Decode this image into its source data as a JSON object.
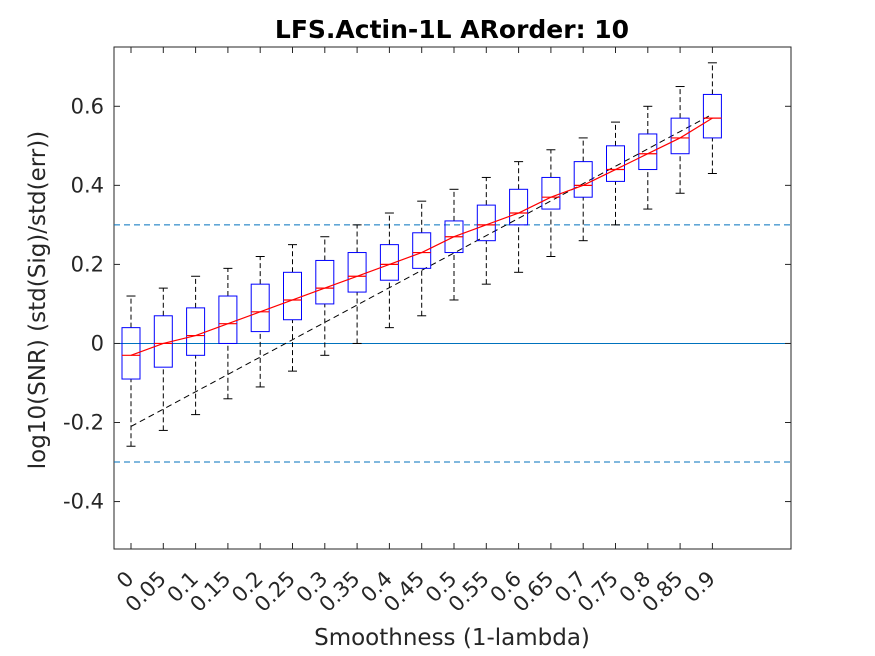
{
  "chart_data": {
    "type": "box",
    "title": "LFS.Actin-1L ARorder: 10",
    "xlabel": "Smoothness (1-lambda)",
    "ylabel": "log10(SNR) (std(Sig)/std(err))",
    "ylim": [
      -0.52,
      0.75
    ],
    "yticks": [
      -0.4,
      -0.2,
      0,
      0.2,
      0.4,
      0.6
    ],
    "ytick_labels": [
      "-0.4",
      "-0.2",
      "0",
      "0.2",
      "0.4",
      "0.6"
    ],
    "categories": [
      "0",
      "0.05",
      "0.1",
      "0.15",
      "0.2",
      "0.25",
      "0.3",
      "0.35",
      "0.4",
      "0.45",
      "0.5",
      "0.55",
      "0.6",
      "0.65",
      "0.7",
      "0.75",
      "0.8",
      "0.85",
      "0.9"
    ],
    "boxes": [
      {
        "whisker_low": -0.26,
        "q1": -0.09,
        "median": -0.03,
        "q3": 0.04,
        "whisker_high": 0.12
      },
      {
        "whisker_low": -0.22,
        "q1": -0.06,
        "median": 0.0,
        "q3": 0.07,
        "whisker_high": 0.14
      },
      {
        "whisker_low": -0.18,
        "q1": -0.03,
        "median": 0.02,
        "q3": 0.09,
        "whisker_high": 0.17
      },
      {
        "whisker_low": -0.14,
        "q1": 0.0,
        "median": 0.05,
        "q3": 0.12,
        "whisker_high": 0.19
      },
      {
        "whisker_low": -0.11,
        "q1": 0.03,
        "median": 0.08,
        "q3": 0.15,
        "whisker_high": 0.22
      },
      {
        "whisker_low": -0.07,
        "q1": 0.06,
        "median": 0.11,
        "q3": 0.18,
        "whisker_high": 0.25
      },
      {
        "whisker_low": -0.03,
        "q1": 0.1,
        "median": 0.14,
        "q3": 0.21,
        "whisker_high": 0.27
      },
      {
        "whisker_low": 0.0,
        "q1": 0.13,
        "median": 0.17,
        "q3": 0.23,
        "whisker_high": 0.3
      },
      {
        "whisker_low": 0.04,
        "q1": 0.16,
        "median": 0.2,
        "q3": 0.25,
        "whisker_high": 0.33
      },
      {
        "whisker_low": 0.07,
        "q1": 0.19,
        "median": 0.23,
        "q3": 0.28,
        "whisker_high": 0.36
      },
      {
        "whisker_low": 0.11,
        "q1": 0.23,
        "median": 0.27,
        "q3": 0.31,
        "whisker_high": 0.39
      },
      {
        "whisker_low": 0.15,
        "q1": 0.26,
        "median": 0.3,
        "q3": 0.35,
        "whisker_high": 0.42
      },
      {
        "whisker_low": 0.18,
        "q1": 0.3,
        "median": 0.33,
        "q3": 0.39,
        "whisker_high": 0.46
      },
      {
        "whisker_low": 0.22,
        "q1": 0.34,
        "median": 0.37,
        "q3": 0.42,
        "whisker_high": 0.49
      },
      {
        "whisker_low": 0.26,
        "q1": 0.37,
        "median": 0.4,
        "q3": 0.46,
        "whisker_high": 0.52
      },
      {
        "whisker_low": 0.3,
        "q1": 0.41,
        "median": 0.44,
        "q3": 0.5,
        "whisker_high": 0.56
      },
      {
        "whisker_low": 0.34,
        "q1": 0.44,
        "median": 0.48,
        "q3": 0.53,
        "whisker_high": 0.6
      },
      {
        "whisker_low": 0.38,
        "q1": 0.48,
        "median": 0.52,
        "q3": 0.57,
        "whisker_high": 0.65
      },
      {
        "whisker_low": 0.43,
        "q1": 0.52,
        "median": 0.57,
        "q3": 0.63,
        "whisker_high": 0.71
      }
    ],
    "reference_lines": [
      {
        "y": 0,
        "style": "solid"
      },
      {
        "y": 0.3,
        "style": "dashed"
      },
      {
        "y": -0.3,
        "style": "dashed"
      }
    ],
    "black_dashed_line": {
      "from": [
        0,
        -0.21
      ],
      "to": [
        0.9,
        0.58
      ]
    },
    "grid": false,
    "colors": {
      "box": "#0000ff",
      "whisker": "#000000",
      "median_line": "#ff0000",
      "trend_line": "#000000",
      "reference": "#0072bd",
      "axis": "#262626"
    }
  }
}
